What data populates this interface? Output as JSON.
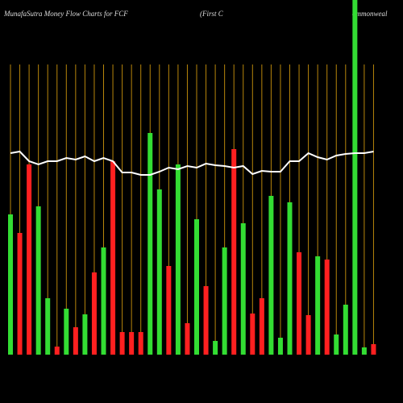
{
  "chart_data": {
    "type": "bar",
    "title": "MunafaSutra  Money Flow  Charts for FCF",
    "subtitle": "(First C",
    "subtitle_continued": "ommonweal",
    "categories": [
      null,
      null,
      null,
      null,
      null,
      null,
      null,
      null,
      null,
      null,
      null,
      null,
      null,
      null,
      null,
      null,
      null,
      null,
      null,
      null,
      null,
      null,
      null,
      null,
      null,
      null,
      null,
      null,
      null,
      null,
      null,
      null,
      null,
      null,
      null,
      null,
      null,
      null,
      null,
      null
    ],
    "series": [
      {
        "type": "bar",
        "colors": [
          "#33dd33",
          "#ff2020",
          "#ff2020",
          "#33dd33",
          "#33dd33",
          "#ff2020",
          "#33dd33",
          "#ff2020",
          "#33dd33",
          "#ff2020",
          "#33dd33",
          "#ff2020",
          "#ff2020",
          "#ff2020",
          "#ff2020",
          "#33dd33",
          "#33dd33",
          "#ff2020",
          "#33dd33",
          "#ff2020",
          "#33dd33",
          "#ff2020",
          "#33dd33",
          "#33dd33",
          "#ff2020",
          "#33dd33",
          "#ff2020",
          "#ff2020",
          "#33dd33",
          "#33dd33",
          "#33dd33",
          "#ff2020",
          "#ff2020",
          "#33dd33",
          "#ff2020",
          "#33dd33",
          "#33dd33",
          "#33dd33",
          "#33dd33",
          "#ff2020"
        ],
        "values": [
          174,
          151,
          236,
          184,
          70,
          10,
          57,
          34,
          50,
          102,
          133,
          240,
          28,
          28,
          28,
          275,
          205,
          110,
          236,
          39,
          168,
          85,
          17,
          133,
          255,
          163,
          51,
          70,
          197,
          21,
          189,
          127,
          49,
          122,
          118,
          25,
          62,
          440,
          9,
          13
        ]
      },
      {
        "type": "line",
        "color": "#ffffff",
        "values": [
          250,
          252,
          240,
          236,
          240,
          240,
          244,
          242,
          246,
          240,
          244,
          240,
          226,
          226,
          223,
          223,
          227,
          232,
          230,
          234,
          232,
          237,
          235,
          234,
          232,
          234,
          224,
          228,
          227,
          227,
          240,
          240,
          250,
          245,
          242,
          247,
          249,
          250,
          250,
          252
        ]
      }
    ],
    "ylim": [
      0,
      440
    ],
    "gridline_color": "#b8860b"
  }
}
